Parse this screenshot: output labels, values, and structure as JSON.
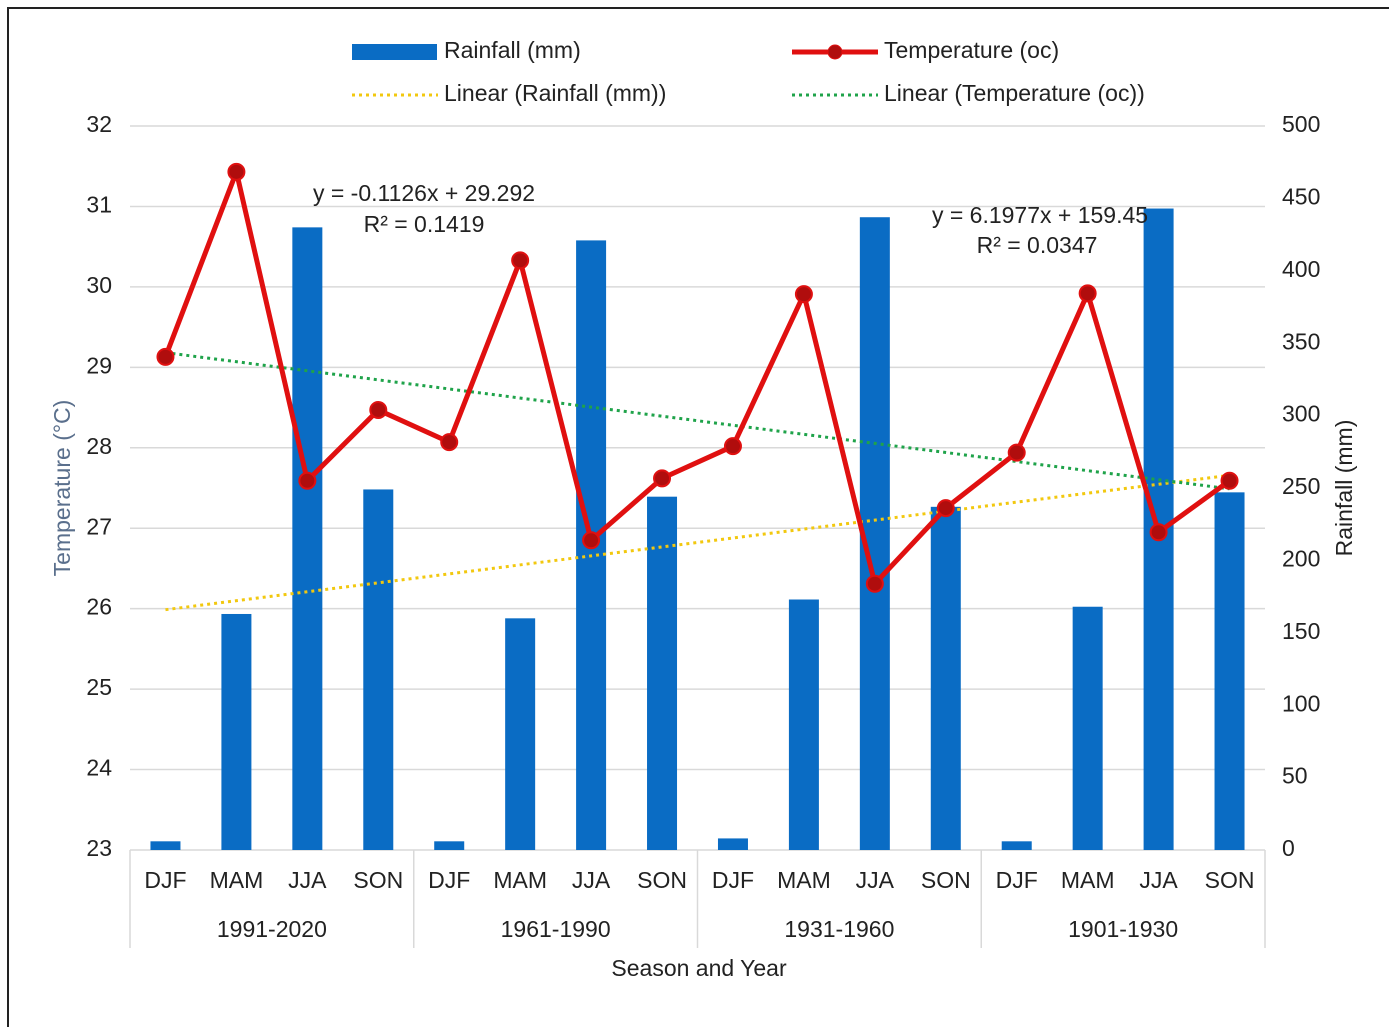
{
  "chart_data": {
    "type": "combo",
    "x_label": "Season and Year",
    "y_label": "Temperature (°C)",
    "y2_label": "Rainfall (mm)",
    "categories": [
      "DJF",
      "MAM",
      "JJA",
      "SON",
      "DJF",
      "MAM",
      "JJA",
      "SON",
      "DJF",
      "MAM",
      "JJA",
      "SON",
      "DJF",
      "MAM",
      "JJA",
      "SON"
    ],
    "groups": [
      "1991-2020",
      "1961-1990",
      "1931-1960",
      "1901-1930"
    ],
    "series": [
      {
        "name": "Rainfall (mm)",
        "type": "bar",
        "axis": "y2",
        "color": "#0a6cc4",
        "values": [
          6,
          163,
          430,
          249,
          6,
          160,
          421,
          244,
          8,
          173,
          437,
          237,
          6,
          168,
          443,
          247
        ]
      },
      {
        "name": "Temperature (oc)",
        "type": "line",
        "axis": "y",
        "color": "#e01010",
        "values": [
          29.13,
          31.43,
          27.59,
          28.47,
          28.07,
          30.33,
          26.85,
          27.62,
          28.02,
          29.91,
          26.31,
          27.25,
          27.94,
          29.92,
          26.95,
          27.59
        ]
      }
    ],
    "trendlines": [
      {
        "name": "Linear (Rainfall (mm))",
        "series": 0,
        "color": "#f2c80f",
        "equation": "y = 6.1977x + 159.45",
        "r2": "R² = 0.0347"
      },
      {
        "name": "Linear (Temperature (oc))",
        "series": 1,
        "color": "#1fa34a",
        "equation": "y = -0.1126x + 29.292",
        "r2": "R² = 0.1419"
      }
    ],
    "ylim": [
      23,
      32
    ],
    "yticks": [
      23,
      24,
      25,
      26,
      27,
      28,
      29,
      30,
      31,
      32
    ],
    "y2lim": [
      0,
      500
    ],
    "y2ticks": [
      0,
      50,
      100,
      150,
      200,
      250,
      300,
      350,
      400,
      450,
      500
    ],
    "grid": true
  }
}
